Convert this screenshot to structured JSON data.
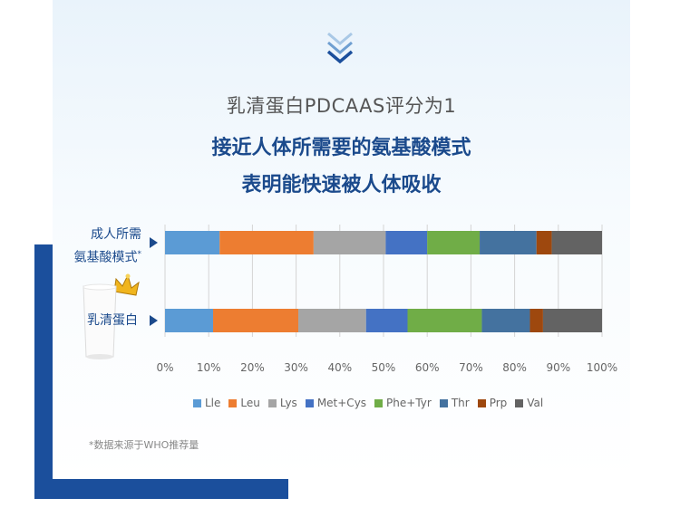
{
  "headline": {
    "line1": "乳清蛋白PDCAAS评分为1",
    "line2": "接近人体所需要的氨基酸模式",
    "line3": "表明能快速被人体吸收"
  },
  "rows": {
    "row1_line1": "成人所需",
    "row1_line2": "氨基酸模式",
    "row1_mark": "*",
    "row2": "乳清蛋白"
  },
  "footnote": "*数据来源于WHO推荐量",
  "icons": [
    "chevron-double-down-icon",
    "crown-icon",
    "milk-glass-icon",
    "row-arrow-icon"
  ],
  "chart_data": {
    "type": "bar",
    "orientation": "horizontal",
    "stacked": true,
    "categories": [
      "成人所需氨基酸模式*",
      "乳清蛋白"
    ],
    "series": [
      {
        "name": "Lle",
        "color": "#5b9bd5",
        "values": [
          12.5,
          11
        ]
      },
      {
        "name": "Leu",
        "color": "#ed7d31",
        "values": [
          21.5,
          19.5
        ]
      },
      {
        "name": "Lys",
        "color": "#a5a5a5",
        "values": [
          16.5,
          15.5
        ]
      },
      {
        "name": "Met+Cys",
        "color": "#4472c4",
        "values": [
          9.5,
          9.5
        ]
      },
      {
        "name": "Phe+Tyr",
        "color": "#70ad47",
        "values": [
          12,
          17
        ]
      },
      {
        "name": "Thr",
        "color": "#44729f",
        "values": [
          13,
          11
        ]
      },
      {
        "name": "Prp",
        "color": "#9e480e",
        "values": [
          3.5,
          3
        ]
      },
      {
        "name": "Val",
        "color": "#636363",
        "values": [
          11.5,
          13.5
        ]
      }
    ],
    "xlim": [
      0,
      100
    ],
    "xticks": [
      "0%",
      "10%",
      "20%",
      "30%",
      "40%",
      "50%",
      "60%",
      "70%",
      "80%",
      "90%",
      "100%"
    ],
    "grid": true,
    "legend": "bottom"
  }
}
